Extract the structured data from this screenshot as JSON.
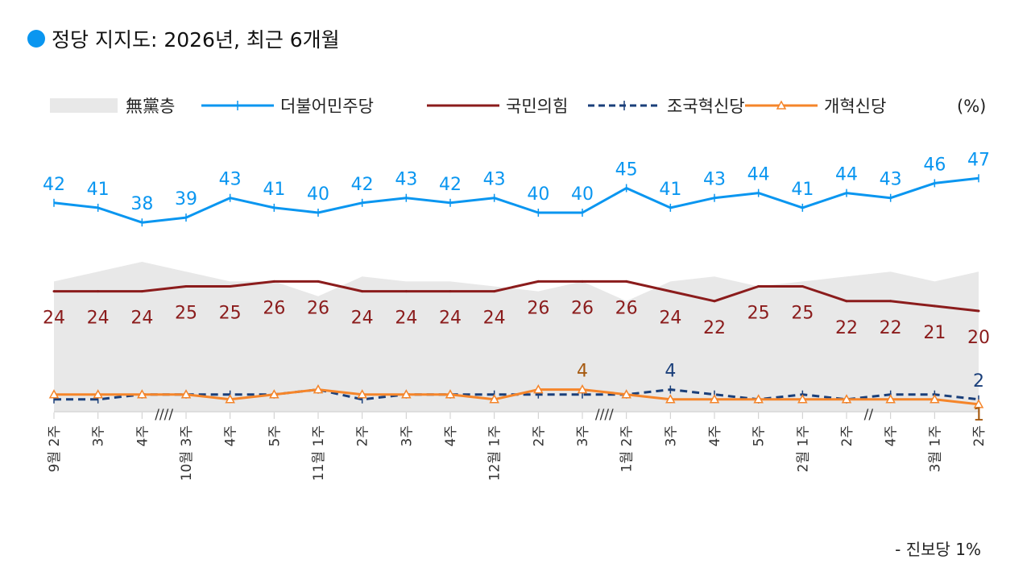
{
  "title": "정당 지지도: 2026년, 최근 6개월",
  "footnote": "- 진보당 1%",
  "chart_data": {
    "type": "line",
    "title": "정당 지지도: 2026년, 최근 6개월",
    "unit": "(%)",
    "categories": [
      "9월 2주",
      "3주",
      "4주",
      "10월 3주",
      "4주",
      "5주",
      "11월 1주",
      "2주",
      "3주",
      "4주",
      "12월 1주",
      "2주",
      "3주",
      "1월 2주",
      "3주",
      "4주",
      "5주",
      "2월 1주",
      "2주",
      "4주",
      "3월 1주",
      "2주"
    ],
    "ylim": [
      0,
      50
    ],
    "grid": false,
    "legend_placement": "top",
    "axis_breaks_after": [
      "4주",
      "3주",
      "2주"
    ],
    "series": [
      {
        "name": "無黨층",
        "style": "area",
        "color": "#e8e8e8",
        "values": [
          26,
          28,
          30,
          28,
          26,
          26,
          23,
          27,
          26,
          26,
          25,
          24,
          26,
          22,
          26,
          27,
          25,
          26,
          27,
          28,
          26,
          28
        ]
      },
      {
        "name": "더불어민주당",
        "style": "line",
        "color": "#0a96f0",
        "marker": "plus",
        "labels": "all",
        "values": [
          42,
          41,
          38,
          39,
          43,
          41,
          40,
          42,
          43,
          42,
          43,
          40,
          40,
          45,
          41,
          43,
          44,
          41,
          44,
          43,
          46,
          47
        ]
      },
      {
        "name": "국민의힘",
        "style": "line",
        "color": "#8b1c1c",
        "labels": "all",
        "values": [
          24,
          24,
          24,
          25,
          25,
          26,
          26,
          24,
          24,
          24,
          24,
          26,
          26,
          26,
          24,
          22,
          25,
          25,
          22,
          22,
          21,
          20
        ]
      },
      {
        "name": "조국혁신당",
        "style": "dashed",
        "color": "#1a3f7a",
        "marker": "plus",
        "values": [
          2,
          2,
          3,
          3,
          3,
          3,
          4,
          2,
          3,
          3,
          3,
          3,
          3,
          3,
          4,
          3,
          2,
          3,
          2,
          3,
          3,
          2
        ],
        "labeled_points": [
          {
            "index": 14,
            "text": "4"
          },
          {
            "index": 21,
            "text": "2"
          }
        ]
      },
      {
        "name": "개혁신당",
        "style": "line",
        "color": "#f5852a",
        "marker": "triangle",
        "values": [
          3,
          3,
          3,
          3,
          2,
          3,
          4,
          3,
          3,
          3,
          2,
          4,
          4,
          3,
          2,
          2,
          2,
          2,
          2,
          2,
          2,
          1
        ],
        "labeled_points": [
          {
            "index": 12,
            "text": "4"
          },
          {
            "index": 21,
            "text": "1"
          }
        ]
      }
    ]
  }
}
